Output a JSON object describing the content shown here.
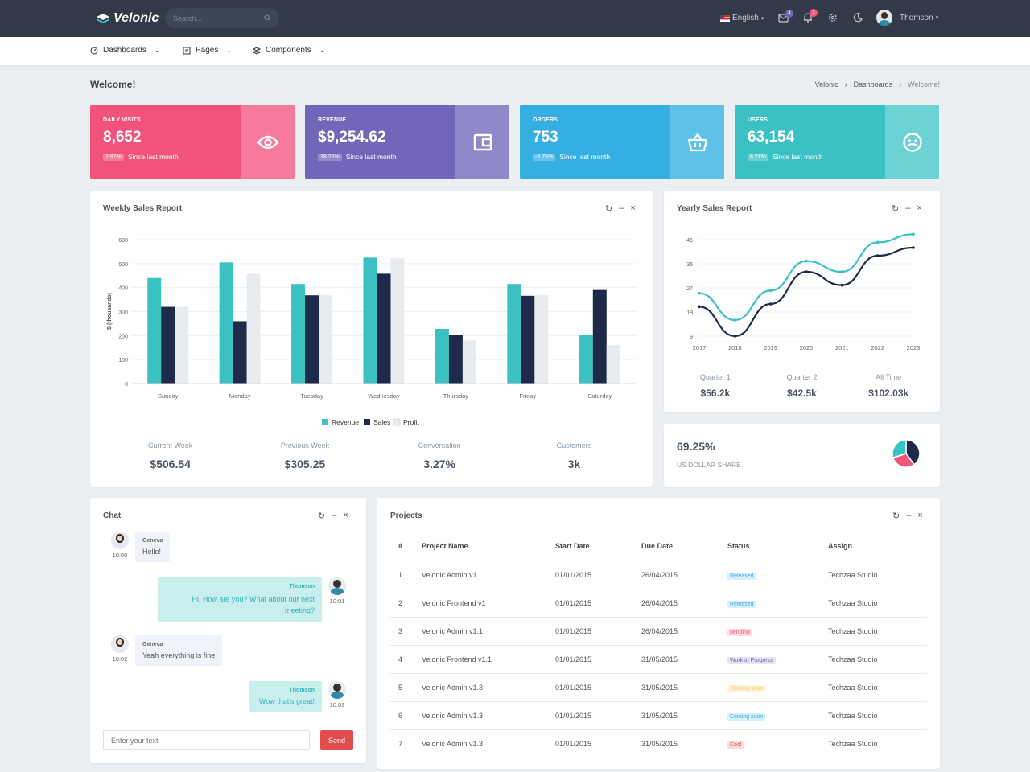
{
  "app": {
    "name": "Velonic"
  },
  "topbar": {
    "search_placeholder": "Search...",
    "language": "English",
    "mail_count": "4",
    "notif_count": "3",
    "user": "Thomson"
  },
  "nav": {
    "items": [
      {
        "label": "Dashboards"
      },
      {
        "label": "Pages"
      },
      {
        "label": "Components"
      }
    ]
  },
  "page": {
    "title": "Welcome!",
    "breadcrumb": [
      "Velonic",
      "Dashboards",
      "Welcome!"
    ]
  },
  "stats": [
    {
      "label": "DAILY VISITS",
      "value": "8,652",
      "change": "2.97%",
      "note": "Since last month",
      "icon": "eye-icon",
      "color": "#f1537b",
      "icon_bg": "#f57a9b"
    },
    {
      "label": "REVENUE",
      "value": "$9,254.62",
      "change": "18.25%",
      "note": "Since last month",
      "icon": "wallet-icon",
      "color": "#7266ba",
      "icon_bg": "#9089c9"
    },
    {
      "label": "ORDERS",
      "value": "753",
      "change": "-5.75%",
      "note": "Since last month",
      "icon": "basket-icon",
      "color": "#35aee2",
      "icon_bg": "#5dc1ea"
    },
    {
      "label": "USERS",
      "value": "63,154",
      "change": "8.21%",
      "note": "Since last month",
      "icon": "smile-icon",
      "color": "#3bc0c3",
      "icon_bg": "#6dd2d4"
    }
  ],
  "weekly": {
    "title": "Weekly Sales Report",
    "summary": [
      {
        "label": "Current Week",
        "value": "$506.54"
      },
      {
        "label": "Previous Week",
        "value": "$305.25"
      },
      {
        "label": "Conversation",
        "value": "3.27%"
      },
      {
        "label": "Customers",
        "value": "3k"
      }
    ]
  },
  "yearly": {
    "title": "Yearly Sales Report",
    "summary": [
      {
        "label": "Quarter 1",
        "value": "$56.2k"
      },
      {
        "label": "Quarter 2",
        "value": "$42.5k"
      },
      {
        "label": "All Time",
        "value": "$102.03k"
      }
    ]
  },
  "share": {
    "value": "69.25%",
    "label": "US DOLLAR SHARE",
    "slices": [
      40,
      30,
      30
    ],
    "colors": [
      "#1e2a4a",
      "#f1537b",
      "#3bc0c3"
    ]
  },
  "chart_data": [
    {
      "type": "bar",
      "title": "Weekly Sales Report",
      "ylabel": "$ (thousands)",
      "categories": [
        "Sunday",
        "Monday",
        "Tuesday",
        "Wednesday",
        "Thursday",
        "Friday",
        "Saturday"
      ],
      "series": [
        {
          "name": "Revenue",
          "color": "#3bc0c3",
          "values": [
            440,
            505,
            415,
            525,
            228,
            415,
            202
          ]
        },
        {
          "name": "Sales",
          "color": "#1e2a4a",
          "values": [
            320,
            260,
            368,
            458,
            202,
            366,
            390
          ]
        },
        {
          "name": "Profit",
          "color": "#e9ecef",
          "values": [
            320,
            458,
            368,
            522,
            180,
            368,
            160
          ]
        }
      ],
      "yticks": [
        0,
        100,
        200,
        300,
        400,
        500,
        600
      ],
      "ylim": [
        0,
        600
      ],
      "legend": "bottom"
    },
    {
      "type": "line",
      "title": "Yearly Sales Report",
      "x": [
        "2017",
        "2018",
        "2019",
        "2020",
        "2021",
        "2022",
        "2023"
      ],
      "series": [
        {
          "color": "#3bc0c3",
          "values": [
            25,
            15,
            26,
            37,
            33,
            44,
            47
          ]
        },
        {
          "color": "#1e2a4a",
          "values": [
            20,
            9,
            21,
            33,
            28,
            39,
            42
          ]
        }
      ],
      "yticks": [
        9,
        18,
        27,
        36,
        45
      ],
      "ylim": [
        9,
        45
      ]
    }
  ],
  "chat": {
    "title": "Chat",
    "messages": [
      {
        "who": "Geneva",
        "text": "Hello!",
        "time": "10:00"
      },
      {
        "who": "Thomson",
        "text": "Hi, How are you? What about our next meeting?",
        "time": "10:01"
      },
      {
        "who": "Geneva",
        "text": "Yeah everything is fine",
        "time": "10:02"
      },
      {
        "who": "Thomson",
        "text": "Wow that's great!",
        "time": "10:03"
      }
    ],
    "input_placeholder": "Enter your text",
    "send_label": "Send"
  },
  "projects": {
    "title": "Projects",
    "columns": [
      "#",
      "Project Name",
      "Start Date",
      "Due Date",
      "Status",
      "Assign"
    ],
    "rows": [
      {
        "n": "1",
        "name": "Velonic Admin v1",
        "start": "01/01/2015",
        "due": "26/04/2015",
        "status": "Released",
        "status_color": "#35aee2",
        "status_bg": "#d7eff9",
        "assign": "Techzaa Studio"
      },
      {
        "n": "2",
        "name": "Velonic Frontend v1",
        "start": "01/01/2015",
        "due": "26/04/2015",
        "status": "Released",
        "status_color": "#35aee2",
        "status_bg": "#d7eff9",
        "assign": "Techzaa Studio"
      },
      {
        "n": "3",
        "name": "Velonic Admin v1.1",
        "start": "01/01/2015",
        "due": "26/04/2015",
        "status": "pending",
        "status_color": "#f1537b",
        "status_bg": "#fde0e7",
        "assign": "Techzaa Studio"
      },
      {
        "n": "4",
        "name": "Velonic Frontend v1.1",
        "start": "01/01/2015",
        "due": "31/05/2015",
        "status": "Work in Progress",
        "status_color": "#7266ba",
        "status_bg": "#e6e3f3",
        "assign": "Techzaa Studio"
      },
      {
        "n": "5",
        "name": "Velonic Admin v1.3",
        "start": "01/01/2015",
        "due": "31/05/2015",
        "status": "Coming soon",
        "status_color": "#f9c851",
        "status_bg": "#fef4dc",
        "assign": "Techzaa Studio"
      },
      {
        "n": "6",
        "name": "Velonic Admin v1.3",
        "start": "01/01/2015",
        "due": "31/05/2015",
        "status": "Coming soon",
        "status_color": "#35aee2",
        "status_bg": "#d7eff9",
        "assign": "Techzaa Studio"
      },
      {
        "n": "7",
        "name": "Velonic Admin v1.3",
        "start": "01/01/2015",
        "due": "31/05/2015",
        "status": "Cool",
        "status_color": "#e34c4c",
        "status_bg": "#fbdcdc",
        "assign": "Techzaa Studio"
      }
    ]
  }
}
